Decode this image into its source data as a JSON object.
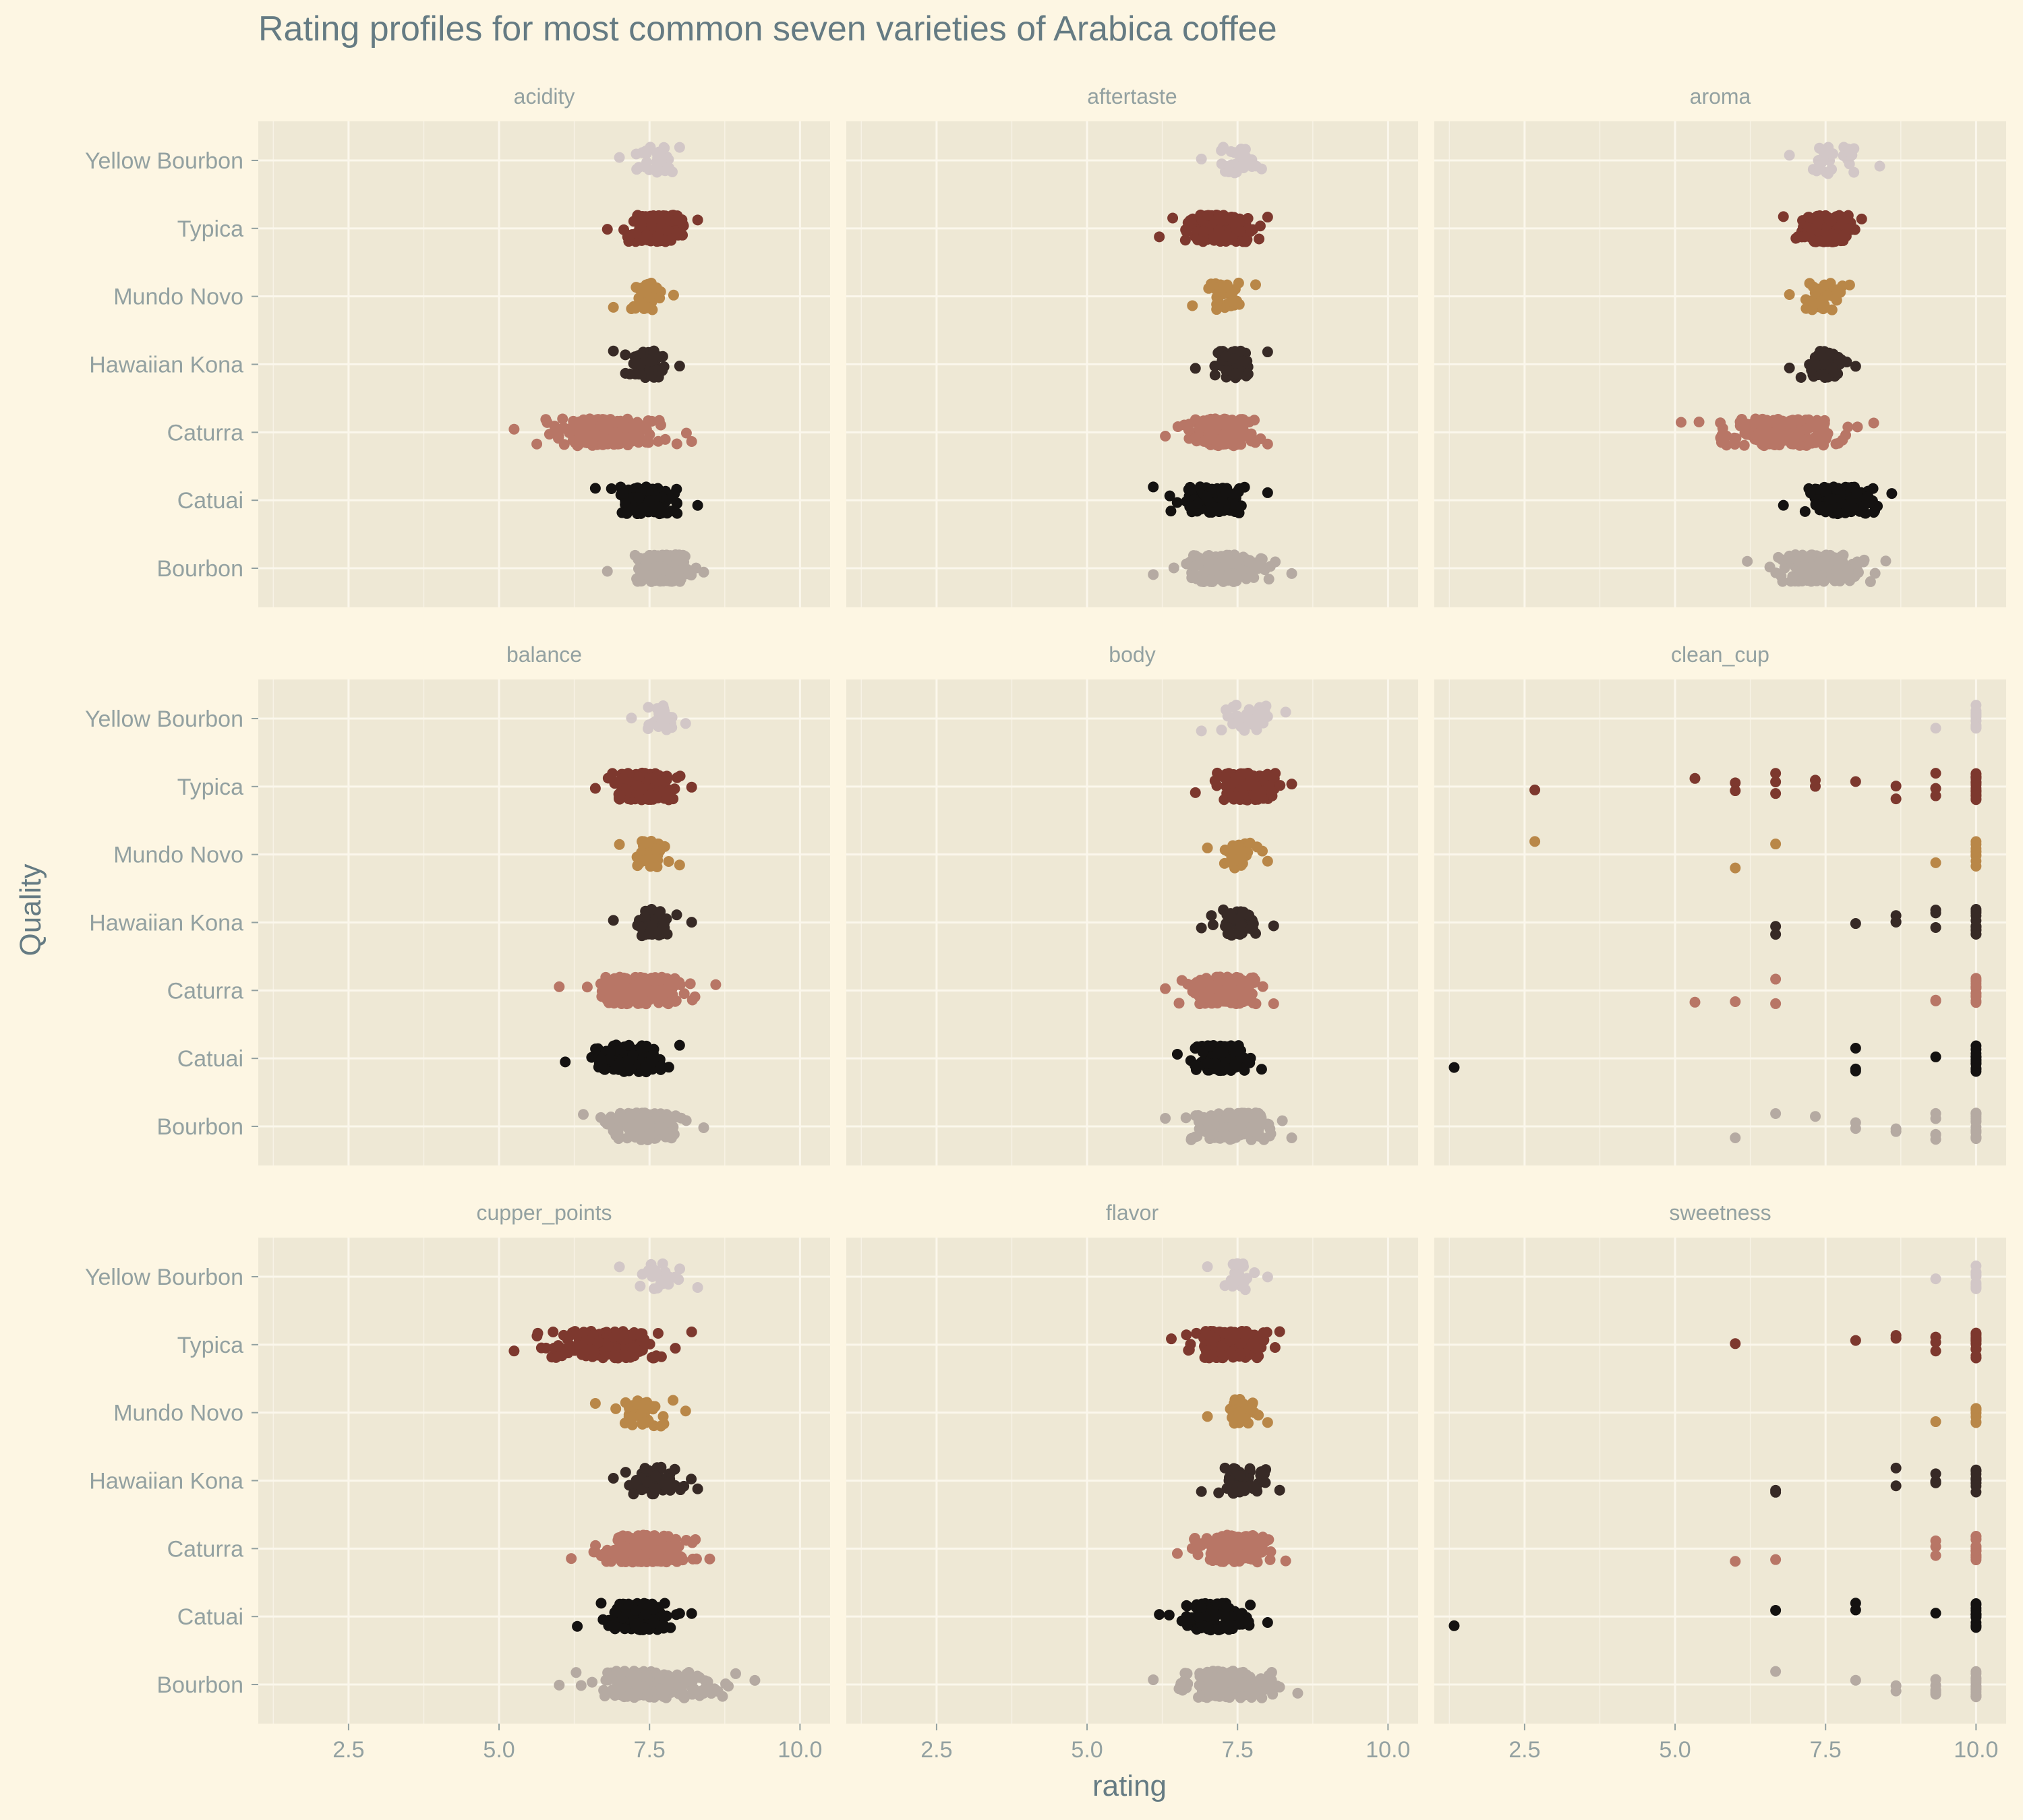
{
  "title": "Rating profiles for most common seven varieties of Arabica coffee",
  "xlabel": "rating",
  "ylabel": "Quality",
  "colors": {
    "background": "#fdf6e3",
    "panel": "#eee8d5",
    "grid": "#fbf7ec",
    "title_text": "#657b83",
    "axis_text": "#93a1a1",
    "strip_text": "#93a1a1"
  },
  "chart_data": {
    "type": "scatter",
    "style": "jittered strip plot, faceted 3x3",
    "xlim": [
      1,
      10.5
    ],
    "x_ticks": [
      "2.5",
      "5.0",
      "7.5",
      "10.0"
    ],
    "x_tick_values": [
      2.5,
      5.0,
      7.5,
      10.0
    ],
    "categories": [
      "Bourbon",
      "Catuai",
      "Caturra",
      "Hawaiian Kona",
      "Mundo Novo",
      "Typica",
      "Yellow Bourbon"
    ],
    "category_colors": {
      "Bourbon": "#b5aaa2",
      "Catuai": "#141211",
      "Caturra": "#b87666",
      "Hawaiian Kona": "#372a26",
      "Mundo Novo": "#b98748",
      "Typica": "#7d382e",
      "Yellow Bourbon": "#d2c7c7"
    },
    "grid": true,
    "legend": "none",
    "panels": [
      {
        "name": "acidity",
        "series": {
          "Yellow Bourbon": {
            "n": 30,
            "min": 7.0,
            "max": 8.0
          },
          "Typica": {
            "n": 200,
            "min": 6.8,
            "max": 8.3
          },
          "Mundo Novo": {
            "n": 40,
            "min": 6.9,
            "max": 7.9
          },
          "Hawaiian Kona": {
            "n": 60,
            "min": 6.9,
            "max": 8.0
          },
          "Caturra": {
            "n": 210,
            "min": 5.25,
            "max": 8.2
          },
          "Catuai": {
            "n": 120,
            "min": 6.6,
            "max": 8.3
          },
          "Bourbon": {
            "n": 180,
            "min": 6.8,
            "max": 8.4
          }
        }
      },
      {
        "name": "aftertaste",
        "series": {
          "Yellow Bourbon": {
            "n": 30,
            "min": 6.9,
            "max": 7.9
          },
          "Typica": {
            "n": 200,
            "min": 6.2,
            "max": 8.0
          },
          "Mundo Novo": {
            "n": 40,
            "min": 6.75,
            "max": 7.8
          },
          "Hawaiian Kona": {
            "n": 60,
            "min": 6.8,
            "max": 8.0
          },
          "Caturra": {
            "n": 210,
            "min": 6.3,
            "max": 8.0
          },
          "Catuai": {
            "n": 120,
            "min": 6.1,
            "max": 8.0
          },
          "Bourbon": {
            "n": 180,
            "min": 6.1,
            "max": 8.4
          }
        }
      },
      {
        "name": "aroma",
        "series": {
          "Yellow Bourbon": {
            "n": 30,
            "min": 6.9,
            "max": 8.4
          },
          "Typica": {
            "n": 200,
            "min": 6.8,
            "max": 8.1
          },
          "Mundo Novo": {
            "n": 40,
            "min": 6.9,
            "max": 7.9
          },
          "Hawaiian Kona": {
            "n": 60,
            "min": 6.9,
            "max": 8.0
          },
          "Caturra": {
            "n": 210,
            "min": 5.1,
            "max": 8.3
          },
          "Catuai": {
            "n": 120,
            "min": 6.8,
            "max": 8.6
          },
          "Bourbon": {
            "n": 180,
            "min": 6.2,
            "max": 8.5
          }
        }
      },
      {
        "name": "balance",
        "series": {
          "Yellow Bourbon": {
            "n": 30,
            "min": 7.2,
            "max": 8.1
          },
          "Typica": {
            "n": 200,
            "min": 6.6,
            "max": 8.2
          },
          "Mundo Novo": {
            "n": 40,
            "min": 7.0,
            "max": 8.0
          },
          "Hawaiian Kona": {
            "n": 60,
            "min": 6.9,
            "max": 8.2
          },
          "Caturra": {
            "n": 210,
            "min": 6.0,
            "max": 8.6
          },
          "Catuai": {
            "n": 120,
            "min": 6.1,
            "max": 8.0
          },
          "Bourbon": {
            "n": 180,
            "min": 6.4,
            "max": 8.4
          }
        }
      },
      {
        "name": "body",
        "series": {
          "Yellow Bourbon": {
            "n": 30,
            "min": 6.9,
            "max": 8.3
          },
          "Typica": {
            "n": 200,
            "min": 6.8,
            "max": 8.4
          },
          "Mundo Novo": {
            "n": 40,
            "min": 7.0,
            "max": 8.0
          },
          "Hawaiian Kona": {
            "n": 60,
            "min": 6.9,
            "max": 8.1
          },
          "Caturra": {
            "n": 210,
            "min": 6.3,
            "max": 8.1
          },
          "Catuai": {
            "n": 120,
            "min": 6.5,
            "max": 7.9
          },
          "Bourbon": {
            "n": 180,
            "min": 6.3,
            "max": 8.4
          }
        }
      },
      {
        "name": "clean_cup",
        "series": {
          "Yellow Bourbon": {
            "values": [
              9.33,
              10,
              10,
              10,
              10,
              10,
              10,
              10,
              10,
              10,
              10,
              10,
              10
            ]
          },
          "Typica": {
            "values": [
              2.67,
              5.33,
              6.0,
              6.0,
              6.67,
              6.67,
              6.67,
              7.33,
              7.33,
              8.0,
              8.67,
              8.67,
              9.33,
              9.33,
              9.33,
              10,
              10,
              10,
              10,
              10,
              10,
              10,
              10,
              10,
              10,
              10,
              10,
              10,
              10,
              10,
              10,
              10,
              10,
              10,
              10
            ]
          },
          "Mundo Novo": {
            "values": [
              2.67,
              6.0,
              6.67,
              9.33,
              10,
              10,
              10,
              10,
              10,
              10,
              10,
              10,
              10
            ]
          },
          "Hawaiian Kona": {
            "values": [
              6.67,
              6.67,
              8.0,
              8.67,
              8.67,
              8.67,
              9.33,
              9.33,
              9.33,
              10,
              10,
              10,
              10,
              10,
              10,
              10,
              10,
              10,
              10,
              10,
              10
            ]
          },
          "Caturra": {
            "values": [
              5.33,
              6.0,
              6.67,
              6.67,
              9.33,
              9.33,
              10,
              10,
              10,
              10,
              10,
              10,
              10,
              10,
              10,
              10,
              10,
              10,
              10,
              10
            ]
          },
          "Catuai": {
            "values": [
              1.33,
              8.0,
              8.0,
              8.0,
              9.33,
              10,
              10,
              10,
              10,
              10,
              10,
              10,
              10,
              10,
              10,
              10,
              10,
              10,
              10
            ]
          },
          "Bourbon": {
            "values": [
              6.0,
              6.67,
              7.33,
              8.0,
              8.0,
              8.67,
              8.67,
              9.33,
              9.33,
              9.33,
              9.33,
              9.33,
              10,
              10,
              10,
              10,
              10,
              10,
              10,
              10,
              10,
              10,
              10,
              10,
              10,
              10,
              10,
              10
            ]
          }
        }
      },
      {
        "name": "cupper_points",
        "series": {
          "Yellow Bourbon": {
            "n": 30,
            "min": 7.0,
            "max": 8.3
          },
          "Typica": {
            "n": 200,
            "min": 5.25,
            "max": 8.2
          },
          "Mundo Novo": {
            "n": 40,
            "min": 6.6,
            "max": 8.1
          },
          "Hawaiian Kona": {
            "n": 60,
            "min": 6.9,
            "max": 8.3
          },
          "Caturra": {
            "n": 210,
            "min": 6.2,
            "max": 8.5
          },
          "Catuai": {
            "n": 120,
            "min": 6.3,
            "max": 8.2
          },
          "Bourbon": {
            "n": 180,
            "min": 6.0,
            "max": 9.25
          }
        }
      },
      {
        "name": "flavor",
        "series": {
          "Yellow Bourbon": {
            "n": 30,
            "min": 7.0,
            "max": 8.0
          },
          "Typica": {
            "n": 200,
            "min": 6.4,
            "max": 8.2
          },
          "Mundo Novo": {
            "n": 40,
            "min": 7.0,
            "max": 8.0
          },
          "Hawaiian Kona": {
            "n": 60,
            "min": 6.9,
            "max": 8.2
          },
          "Caturra": {
            "n": 210,
            "min": 6.5,
            "max": 8.3
          },
          "Catuai": {
            "n": 120,
            "min": 6.2,
            "max": 8.0
          },
          "Bourbon": {
            "n": 180,
            "min": 6.1,
            "max": 8.5
          }
        }
      },
      {
        "name": "sweetness",
        "series": {
          "Yellow Bourbon": {
            "values": [
              9.33,
              10,
              10,
              10,
              10,
              10,
              10,
              10,
              10,
              10,
              10
            ]
          },
          "Typica": {
            "values": [
              6.0,
              8.0,
              8.67,
              8.67,
              9.33,
              9.33,
              9.33,
              10,
              10,
              10,
              10,
              10,
              10,
              10,
              10,
              10,
              10,
              10,
              10,
              10,
              10,
              10,
              10,
              10,
              10
            ]
          },
          "Mundo Novo": {
            "values": [
              9.33,
              10,
              10,
              10,
              10,
              10,
              10,
              10,
              10,
              10
            ]
          },
          "Hawaiian Kona": {
            "values": [
              6.67,
              6.67,
              8.67,
              8.67,
              9.33,
              9.33,
              9.33,
              9.33,
              10,
              10,
              10,
              10,
              10,
              10,
              10,
              10,
              10,
              10,
              10,
              10
            ]
          },
          "Caturra": {
            "values": [
              6.0,
              6.67,
              9.33,
              9.33,
              9.33,
              10,
              10,
              10,
              10,
              10,
              10,
              10,
              10,
              10,
              10,
              10,
              10,
              10,
              10,
              10
            ]
          },
          "Catuai": {
            "values": [
              1.33,
              6.67,
              8.0,
              8.0,
              9.33,
              10,
              10,
              10,
              10,
              10,
              10,
              10,
              10,
              10,
              10,
              10,
              10,
              10,
              10
            ]
          },
          "Bourbon": {
            "values": [
              6.67,
              8.0,
              8.67,
              8.67,
              9.33,
              9.33,
              9.33,
              9.33,
              9.33,
              10,
              10,
              10,
              10,
              10,
              10,
              10,
              10,
              10,
              10,
              10,
              10,
              10,
              10,
              10,
              10
            ]
          }
        }
      }
    ]
  }
}
